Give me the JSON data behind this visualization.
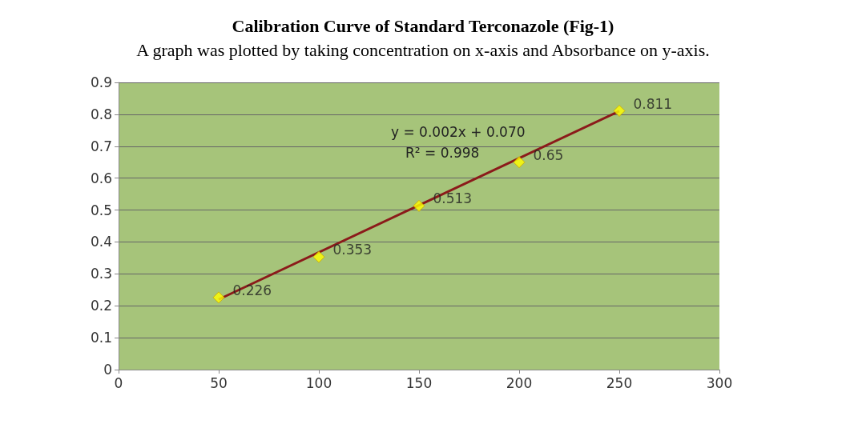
{
  "chart_data": {
    "type": "scatter",
    "title": "Calibration Curve of Standard Terconazole (Fig-1)",
    "subtitle": "A graph was plotted by taking concentration on x-axis and Absorbance on y-axis.",
    "annotations": [
      "y = 0.002x + 0.070",
      "R² = 0.998"
    ],
    "x": [
      50,
      100,
      150,
      200,
      250
    ],
    "series": [
      {
        "color": "#ffff00",
        "marker": "diamond",
        "values": [
          0.226,
          0.353,
          0.513,
          0.65,
          0.811
        ],
        "value_labels": [
          "0.226",
          "0.353",
          "0.513",
          "0.65",
          "0.811"
        ]
      },
      {
        "type": "line",
        "color": "#8b1a1a",
        "marker": "none",
        "x": [
          50,
          250
        ],
        "values": [
          0.22,
          0.81
        ]
      }
    ],
    "xlim": [
      0,
      300
    ],
    "xticks": [
      0,
      50,
      100,
      150,
      200,
      250,
      300
    ],
    "ylim": [
      0,
      0.9
    ],
    "yticks": [
      0,
      0.1,
      0.2,
      0.3,
      0.4,
      0.5,
      0.6,
      0.7,
      0.8,
      0.9
    ],
    "grid": "y"
  }
}
